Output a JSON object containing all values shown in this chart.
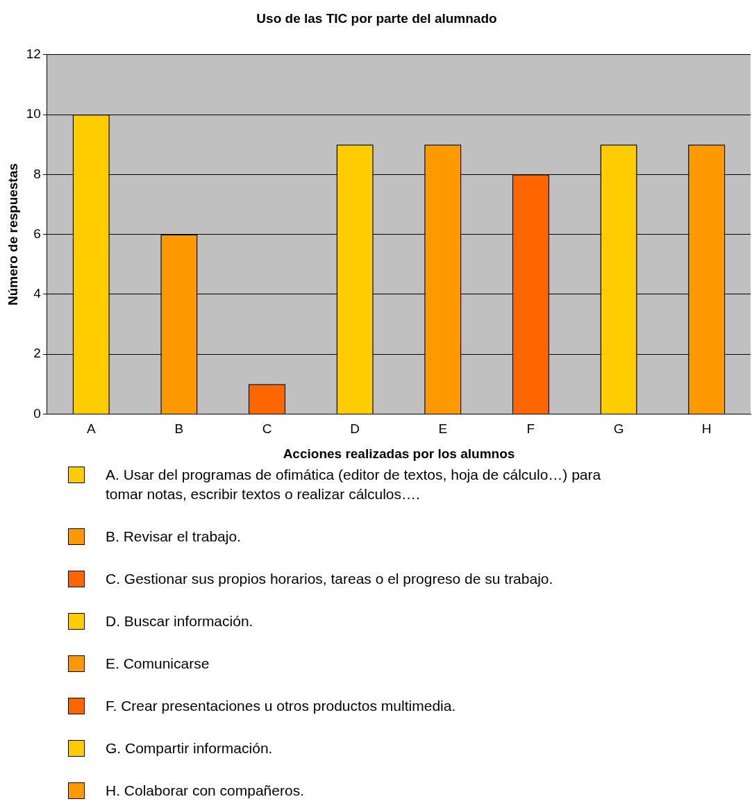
{
  "chart_data": {
    "type": "bar",
    "title": "Uso de las TIC por parte del alumnado",
    "xlabel": "Acciones realizadas por los alumnos",
    "ylabel": "Número de respuestas",
    "categories": [
      "A",
      "B",
      "C",
      "D",
      "E",
      "F",
      "G",
      "H"
    ],
    "stacked": true,
    "series": [
      {
        "name": "A. Usar del programas de ofimática (editor de textos, hoja de cálculo…) para tomar notas, escribir textos o realizar cálculos….",
        "color": "#ffcc00",
        "values": [
          10,
          null,
          null,
          null,
          null,
          null,
          null,
          null
        ]
      },
      {
        "name": "B. Revisar el trabajo.",
        "color": "#ff9900",
        "values": [
          null,
          6,
          null,
          null,
          null,
          null,
          null,
          null
        ]
      },
      {
        "name": "C. Gestionar sus propios horarios, tareas o el progreso de su trabajo.",
        "color": "#ff6600",
        "values": [
          null,
          null,
          1,
          null,
          null,
          null,
          null,
          null
        ]
      },
      {
        "name": "D. Buscar información.",
        "color": "#ffcc00",
        "values": [
          null,
          null,
          null,
          9,
          null,
          null,
          null,
          null
        ]
      },
      {
        "name": "E. Comunicarse",
        "color": "#ff9900",
        "values": [
          null,
          null,
          null,
          null,
          9,
          null,
          null,
          null
        ]
      },
      {
        "name": "F. Crear presentaciones u otros productos multimedia.",
        "color": "#ff6600",
        "values": [
          null,
          null,
          null,
          null,
          null,
          8,
          null,
          null
        ]
      },
      {
        "name": "G. Compartir información.",
        "color": "#ffcc00",
        "values": [
          null,
          null,
          null,
          null,
          null,
          null,
          9,
          null
        ]
      },
      {
        "name": "H. Colaborar con compañeros.",
        "color": "#ff9900",
        "values": [
          null,
          null,
          null,
          null,
          null,
          null,
          null,
          9
        ]
      }
    ],
    "ylim": [
      0,
      12
    ],
    "yticks": [
      0,
      2,
      4,
      6,
      8,
      10,
      12
    ],
    "grid": "y",
    "legend": "bottom"
  }
}
